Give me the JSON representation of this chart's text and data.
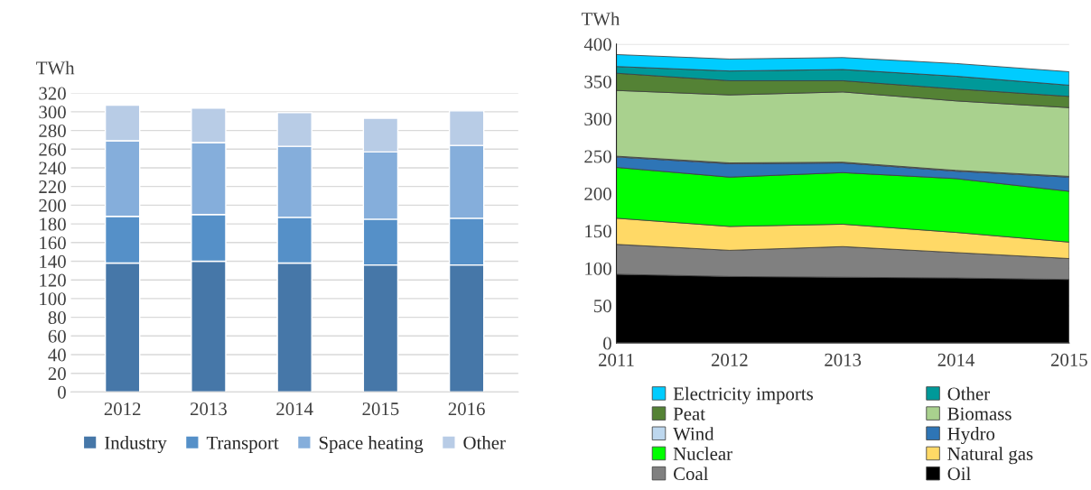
{
  "chart_data": [
    {
      "type": "bar",
      "stacked": true,
      "ylabel": "TWh",
      "categories": [
        "2012",
        "2013",
        "2014",
        "2015",
        "2016"
      ],
      "ylim": [
        0,
        320
      ],
      "yticks": [
        0,
        20,
        40,
        60,
        80,
        100,
        120,
        140,
        160,
        180,
        200,
        220,
        240,
        260,
        280,
        300,
        320
      ],
      "grid": "y",
      "legend": "bottom",
      "series": [
        {
          "name": "Industry",
          "color": "#4677a8",
          "values": [
            138,
            140,
            138,
            136,
            136
          ]
        },
        {
          "name": "Transport",
          "color": "#5590c8",
          "values": [
            50,
            50,
            49,
            49,
            50
          ]
        },
        {
          "name": "Space heating",
          "color": "#85aedb",
          "values": [
            81,
            77,
            76,
            72,
            78
          ]
        },
        {
          "name": "Other",
          "color": "#b8cce6",
          "values": [
            38,
            37,
            36,
            36,
            37
          ]
        }
      ]
    },
    {
      "type": "area",
      "stacked": true,
      "ylabel": "TWh",
      "x": [
        2011,
        2012,
        2013,
        2014,
        2015
      ],
      "xlim": [
        2011,
        2015
      ],
      "xticks": [
        2011,
        2012,
        2013,
        2014,
        2015
      ],
      "ylim": [
        0,
        400
      ],
      "yticks": [
        0,
        50,
        100,
        150,
        200,
        250,
        300,
        350,
        400
      ],
      "grid": "y",
      "legend": "bottom",
      "series": [
        {
          "name": "Oil",
          "color": "#000000",
          "values": [
            92,
            89,
            88,
            87,
            85
          ]
        },
        {
          "name": "Coal",
          "color": "#808080",
          "values": [
            40,
            35,
            41,
            34,
            28
          ]
        },
        {
          "name": "Natural gas",
          "color": "#ffd966",
          "values": [
            35,
            32,
            30,
            27,
            22
          ]
        },
        {
          "name": "Nuclear",
          "color": "#00ff00",
          "values": [
            68,
            66,
            69,
            72,
            68
          ]
        },
        {
          "name": "Hydro",
          "color": "#2e75b6",
          "values": [
            14,
            18,
            13,
            10,
            19
          ]
        },
        {
          "name": "Wind",
          "color": "#bdd7ee",
          "values": [
            1,
            1,
            1,
            1,
            1
          ]
        },
        {
          "name": "Biomass",
          "color": "#a9d18e",
          "values": [
            88,
            91,
            94,
            93,
            92
          ]
        },
        {
          "name": "Peat",
          "color": "#548235",
          "values": [
            23,
            19,
            15,
            16,
            15
          ]
        },
        {
          "name": "Other",
          "color": "#009999",
          "values": [
            9,
            13,
            15,
            17,
            15
          ]
        },
        {
          "name": "Electricity imports",
          "color": "#00ccff",
          "values": [
            16,
            16,
            16,
            17,
            18
          ]
        }
      ]
    }
  ]
}
